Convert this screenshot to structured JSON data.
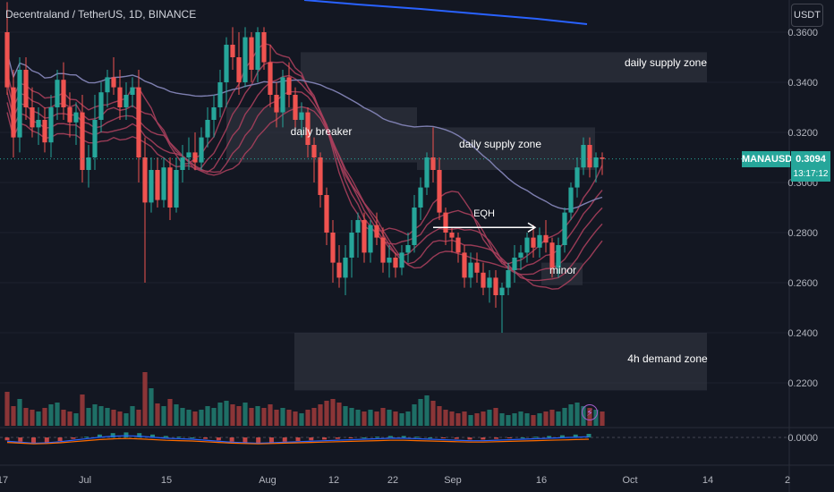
{
  "header": {
    "symbol_title": "Decentraland / TetherUS, 1D, BINANCE",
    "currency": "USDT"
  },
  "price_tag": {
    "ticker": "MANAUSDT",
    "price": "0.3094",
    "countdown": "13:17:12"
  },
  "icons": {
    "alert": "bolt-icon"
  },
  "colors": {
    "background": "#131722",
    "up": "#26a69a",
    "down": "#ef5350",
    "zone": "#363a45",
    "ribbon": "#a93f5c",
    "ribbon_green": "#4bb89c",
    "ma_slow": "#7e7fb0",
    "ma_blue": "#2962ff",
    "grid": "#1e222d",
    "axis_text": "#b2b5be"
  },
  "chart_data": {
    "type": "candlestick",
    "y_axis": {
      "range": [
        0.2,
        0.365
      ],
      "ticks": [
        "0.3600",
        "0.3400",
        "0.3200",
        "0.3000",
        "0.2800",
        "0.2600",
        "0.2400",
        "0.2200"
      ]
    },
    "oscillator_axis": {
      "ticks": [
        "0.0000"
      ]
    },
    "x_axis": {
      "labels": [
        "17",
        "Jul",
        "15",
        "Aug",
        "12",
        "22",
        "Sep",
        "16",
        "Oct",
        "14",
        "2"
      ]
    },
    "last_price": 0.3094,
    "zones": [
      {
        "label": "daily supply zone",
        "top": 0.352,
        "bottom": 0.34
      },
      {
        "label": "daily breaker",
        "top": 0.33,
        "bottom": 0.308
      },
      {
        "label": "daily supply zone",
        "top": 0.322,
        "bottom": 0.305
      },
      {
        "label": "4h demand zone",
        "top": 0.24,
        "bottom": 0.217
      },
      {
        "label": "minor",
        "top": 0.268,
        "bottom": 0.259
      }
    ],
    "annotations": [
      {
        "label": "EQH",
        "price": 0.2835
      }
    ],
    "candles": [
      [
        0.36,
        0.372,
        0.335,
        0.338
      ],
      [
        0.338,
        0.345,
        0.31,
        0.318
      ],
      [
        0.318,
        0.35,
        0.312,
        0.345
      ],
      [
        0.345,
        0.35,
        0.325,
        0.33
      ],
      [
        0.33,
        0.338,
        0.318,
        0.322
      ],
      [
        0.322,
        0.33,
        0.315,
        0.325
      ],
      [
        0.325,
        0.33,
        0.312,
        0.316
      ],
      [
        0.316,
        0.335,
        0.31,
        0.33
      ],
      [
        0.33,
        0.345,
        0.325,
        0.341
      ],
      [
        0.341,
        0.348,
        0.325,
        0.33
      ],
      [
        0.33,
        0.336,
        0.318,
        0.324
      ],
      [
        0.324,
        0.332,
        0.315,
        0.328
      ],
      [
        0.328,
        0.335,
        0.3,
        0.305
      ],
      [
        0.305,
        0.315,
        0.298,
        0.31
      ],
      [
        0.31,
        0.335,
        0.305,
        0.325
      ],
      [
        0.325,
        0.34,
        0.32,
        0.336
      ],
      [
        0.336,
        0.345,
        0.33,
        0.342
      ],
      [
        0.342,
        0.35,
        0.335,
        0.338
      ],
      [
        0.338,
        0.345,
        0.325,
        0.33
      ],
      [
        0.33,
        0.34,
        0.325,
        0.335
      ],
      [
        0.335,
        0.342,
        0.33,
        0.338
      ],
      [
        0.338,
        0.345,
        0.3,
        0.31
      ],
      [
        0.31,
        0.318,
        0.26,
        0.292
      ],
      [
        0.292,
        0.31,
        0.288,
        0.305
      ],
      [
        0.305,
        0.31,
        0.29,
        0.293
      ],
      [
        0.293,
        0.31,
        0.29,
        0.306
      ],
      [
        0.306,
        0.31,
        0.285,
        0.29
      ],
      [
        0.29,
        0.31,
        0.288,
        0.305
      ],
      [
        0.305,
        0.315,
        0.3,
        0.31
      ],
      [
        0.31,
        0.318,
        0.305,
        0.312
      ],
      [
        0.312,
        0.32,
        0.305,
        0.308
      ],
      [
        0.308,
        0.322,
        0.305,
        0.318
      ],
      [
        0.318,
        0.33,
        0.314,
        0.325
      ],
      [
        0.325,
        0.335,
        0.318,
        0.33
      ],
      [
        0.33,
        0.345,
        0.326,
        0.34
      ],
      [
        0.34,
        0.358,
        0.33,
        0.355
      ],
      [
        0.355,
        0.362,
        0.345,
        0.35
      ],
      [
        0.35,
        0.36,
        0.335,
        0.34
      ],
      [
        0.34,
        0.362,
        0.338,
        0.358
      ],
      [
        0.358,
        0.36,
        0.34,
        0.345
      ],
      [
        0.345,
        0.362,
        0.34,
        0.36
      ],
      [
        0.36,
        0.362,
        0.345,
        0.348
      ],
      [
        0.348,
        0.355,
        0.33,
        0.335
      ],
      [
        0.335,
        0.34,
        0.322,
        0.328
      ],
      [
        0.328,
        0.345,
        0.322,
        0.342
      ],
      [
        0.342,
        0.348,
        0.33,
        0.335
      ],
      [
        0.335,
        0.338,
        0.322,
        0.325
      ],
      [
        0.325,
        0.332,
        0.318,
        0.328
      ],
      [
        0.328,
        0.33,
        0.31,
        0.315
      ],
      [
        0.315,
        0.318,
        0.3,
        0.31
      ],
      [
        0.31,
        0.312,
        0.29,
        0.295
      ],
      [
        0.295,
        0.298,
        0.275,
        0.28
      ],
      [
        0.28,
        0.285,
        0.26,
        0.268
      ],
      [
        0.268,
        0.275,
        0.258,
        0.262
      ],
      [
        0.262,
        0.275,
        0.255,
        0.27
      ],
      [
        0.27,
        0.285,
        0.262,
        0.28
      ],
      [
        0.28,
        0.288,
        0.27,
        0.285
      ],
      [
        0.285,
        0.288,
        0.268,
        0.272
      ],
      [
        0.272,
        0.285,
        0.268,
        0.283
      ],
      [
        0.283,
        0.288,
        0.275,
        0.278
      ],
      [
        0.278,
        0.282,
        0.264,
        0.268
      ],
      [
        0.268,
        0.275,
        0.262,
        0.27
      ],
      [
        0.27,
        0.272,
        0.262,
        0.266
      ],
      [
        0.266,
        0.275,
        0.263,
        0.272
      ],
      [
        0.272,
        0.28,
        0.268,
        0.275
      ],
      [
        0.275,
        0.295,
        0.272,
        0.29
      ],
      [
        0.29,
        0.302,
        0.285,
        0.298
      ],
      [
        0.298,
        0.312,
        0.295,
        0.31
      ],
      [
        0.31,
        0.322,
        0.3,
        0.305
      ],
      [
        0.305,
        0.31,
        0.285,
        0.288
      ],
      [
        0.288,
        0.29,
        0.275,
        0.28
      ],
      [
        0.28,
        0.282,
        0.272,
        0.278
      ],
      [
        0.278,
        0.28,
        0.268,
        0.272
      ],
      [
        0.272,
        0.275,
        0.258,
        0.262
      ],
      [
        0.262,
        0.272,
        0.258,
        0.268
      ],
      [
        0.268,
        0.272,
        0.26,
        0.264
      ],
      [
        0.264,
        0.268,
        0.255,
        0.258
      ],
      [
        0.258,
        0.265,
        0.252,
        0.262
      ],
      [
        0.262,
        0.265,
        0.25,
        0.255
      ],
      [
        0.255,
        0.26,
        0.24,
        0.258
      ],
      [
        0.258,
        0.268,
        0.255,
        0.265
      ],
      [
        0.265,
        0.275,
        0.26,
        0.27
      ],
      [
        0.27,
        0.275,
        0.265,
        0.272
      ],
      [
        0.272,
        0.28,
        0.268,
        0.278
      ],
      [
        0.278,
        0.283,
        0.27,
        0.274
      ],
      [
        0.274,
        0.282,
        0.27,
        0.279
      ],
      [
        0.279,
        0.285,
        0.272,
        0.276
      ],
      [
        0.276,
        0.278,
        0.262,
        0.266
      ],
      [
        0.266,
        0.278,
        0.262,
        0.275
      ],
      [
        0.275,
        0.29,
        0.272,
        0.288
      ],
      [
        0.288,
        0.3,
        0.285,
        0.298
      ],
      [
        0.298,
        0.31,
        0.294,
        0.306
      ],
      [
        0.306,
        0.318,
        0.303,
        0.315
      ],
      [
        0.315,
        0.318,
        0.302,
        0.306
      ],
      [
        0.306,
        0.312,
        0.3,
        0.31
      ],
      [
        0.31,
        0.312,
        0.303,
        0.3094
      ]
    ],
    "volume": [
      38,
      22,
      30,
      20,
      18,
      16,
      20,
      24,
      26,
      18,
      16,
      14,
      35,
      20,
      24,
      22,
      20,
      18,
      16,
      14,
      22,
      18,
      60,
      42,
      25,
      22,
      30,
      24,
      20,
      18,
      16,
      18,
      22,
      20,
      26,
      28,
      24,
      22,
      26,
      20,
      22,
      20,
      24,
      18,
      20,
      18,
      16,
      14,
      18,
      20,
      24,
      28,
      30,
      26,
      22,
      20,
      18,
      16,
      18,
      16,
      20,
      18,
      16,
      14,
      16,
      24,
      30,
      34,
      28,
      22,
      18,
      16,
      14,
      16,
      12,
      14,
      16,
      18,
      20,
      14,
      12,
      14,
      16,
      14,
      12,
      14,
      16,
      18,
      16,
      20,
      24,
      26,
      22,
      20,
      18,
      16
    ],
    "oscillator": [
      -0.004,
      -0.006,
      -0.008,
      -0.007,
      -0.005,
      -0.002,
      0.001,
      0.004,
      0.006,
      0.007,
      0.006,
      0.004,
      0.002,
      0.001,
      0.0,
      -0.002,
      -0.004,
      -0.006,
      -0.007,
      -0.008,
      -0.007,
      -0.006,
      -0.005,
      -0.004,
      -0.003,
      -0.002,
      -0.001,
      0.0,
      0.001,
      0.002,
      0.002,
      0.001,
      0.0,
      -0.001,
      -0.002,
      -0.003,
      -0.003,
      -0.002,
      -0.001,
      0.0,
      0.001,
      0.002,
      0.003,
      0.004,
      0.005
    ]
  }
}
